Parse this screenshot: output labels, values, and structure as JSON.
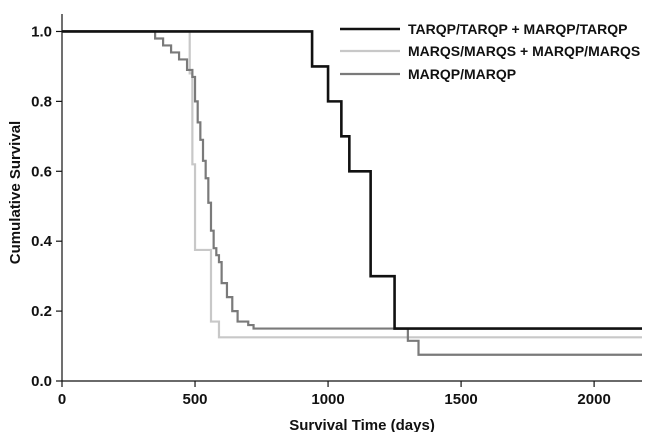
{
  "chart_data": {
    "type": "line",
    "subtype": "kaplan-meier step",
    "title": "",
    "xlabel": "Survival Time (days)",
    "ylabel": "Cumulative Survival",
    "xlim": [
      0,
      2180
    ],
    "ylim": [
      0,
      1.05
    ],
    "x_ticks": [
      0,
      500,
      1000,
      1500,
      2000
    ],
    "y_ticks": [
      0.0,
      0.2,
      0.4,
      0.6,
      0.8,
      1.0
    ],
    "x_tick_labels": [
      "0",
      "500",
      "1000",
      "1500",
      "2000"
    ],
    "y_tick_labels": [
      "0.0",
      "0.2",
      "0.4",
      "0.6",
      "0.8",
      "1.0"
    ],
    "grid": false,
    "legend_position": "top-right",
    "series": [
      {
        "name": "TARQP/TARQP + MARQP/TARQP",
        "color": "#111111",
        "x": [
          0,
          940,
          1000,
          1050,
          1080,
          1160,
          1250,
          2180
        ],
        "y": [
          1.0,
          0.9,
          0.8,
          0.7,
          0.6,
          0.3,
          0.15,
          0.15
        ]
      },
      {
        "name": "MARQS/MARQS + MARQP/MARQS",
        "color": "#c8c8c8",
        "x": [
          0,
          480,
          490,
          500,
          560,
          590,
          2180
        ],
        "y": [
          1.0,
          0.88,
          0.62,
          0.375,
          0.17,
          0.125,
          0.125
        ]
      },
      {
        "name": "MARQP/MARQP",
        "color": "#7a7a7a",
        "x": [
          0,
          350,
          380,
          410,
          440,
          470,
          490,
          500,
          510,
          520,
          530,
          540,
          550,
          560,
          570,
          580,
          590,
          600,
          620,
          640,
          660,
          700,
          720,
          1250,
          1300,
          1340,
          2180
        ],
        "y": [
          1.0,
          0.98,
          0.96,
          0.94,
          0.92,
          0.89,
          0.87,
          0.8,
          0.74,
          0.69,
          0.63,
          0.58,
          0.51,
          0.43,
          0.38,
          0.36,
          0.34,
          0.28,
          0.24,
          0.2,
          0.17,
          0.16,
          0.15,
          0.15,
          0.115,
          0.075,
          0.075
        ]
      }
    ]
  }
}
